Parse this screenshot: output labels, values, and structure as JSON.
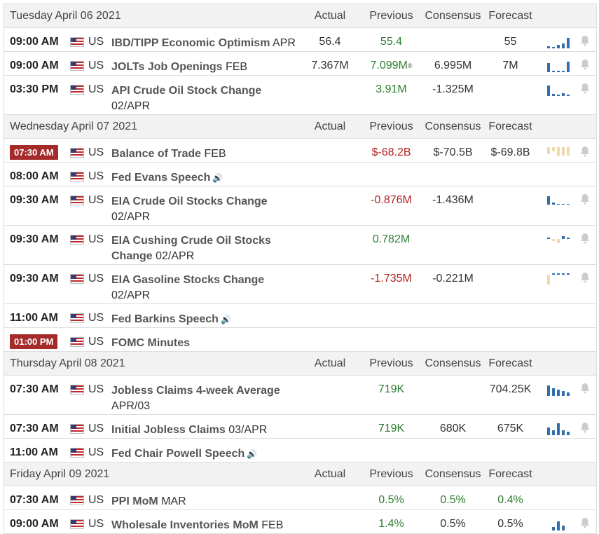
{
  "columns": {
    "actual": "Actual",
    "previous": "Previous",
    "consensus": "Consensus",
    "forecast": "Forecast"
  },
  "days": [
    {
      "title": "Tuesday April 06 2021"
    },
    {
      "title": "Wednesday April 07 2021"
    },
    {
      "title": "Thursday April 08 2021"
    },
    {
      "title": "Friday April 09 2021"
    }
  ],
  "events": [
    {
      "time": "09:00 AM",
      "country": "US",
      "name": "IBD/TIPP Economic Optimism",
      "period": "APR",
      "actual": "56.4",
      "previous": "55.4",
      "consensus": "",
      "forecast": "55"
    },
    {
      "time": "09:00 AM",
      "country": "US",
      "name": "JOLTs Job Openings",
      "period": "FEB",
      "actual": "7.367M",
      "previous": "7.099M",
      "revised_mark": "®",
      "consensus": "6.995M",
      "forecast": "7M"
    },
    {
      "time": "03:30 PM",
      "country": "US",
      "name": "API Crude Oil Stock Change",
      "period": "02/APR",
      "actual": "",
      "previous": "3.91M",
      "consensus": "-1.325M",
      "forecast": ""
    },
    {
      "time": "07:30 AM",
      "country": "US",
      "name": "Balance of Trade",
      "period": "FEB",
      "actual": "",
      "previous": "$-68.2B",
      "consensus": "$-70.5B",
      "forecast": "$-69.8B"
    },
    {
      "time": "08:00 AM",
      "country": "US",
      "name": "Fed Evans Speech",
      "period": "",
      "actual": "",
      "previous": "",
      "consensus": "",
      "forecast": ""
    },
    {
      "time": "09:30 AM",
      "country": "US",
      "name": "EIA Crude Oil Stocks Change",
      "period": "02/APR",
      "actual": "",
      "previous": "-0.876M",
      "consensus": "-1.436M",
      "forecast": ""
    },
    {
      "time": "09:30 AM",
      "country": "US",
      "name": "EIA Cushing Crude Oil Stocks Change",
      "period": "02/APR",
      "actual": "",
      "previous": "0.782M",
      "consensus": "",
      "forecast": ""
    },
    {
      "time": "09:30 AM",
      "country": "US",
      "name": "EIA Gasoline Stocks Change",
      "period": "02/APR",
      "actual": "",
      "previous": "-1.735M",
      "consensus": "-0.221M",
      "forecast": ""
    },
    {
      "time": "11:00 AM",
      "country": "US",
      "name": "Fed Barkins Speech",
      "period": "",
      "actual": "",
      "previous": "",
      "consensus": "",
      "forecast": ""
    },
    {
      "time": "01:00 PM",
      "country": "US",
      "name": "FOMC Minutes",
      "period": "",
      "actual": "",
      "previous": "",
      "consensus": "",
      "forecast": ""
    },
    {
      "time": "07:30 AM",
      "country": "US",
      "name": "Jobless Claims 4-week Average",
      "period": "APR/03",
      "actual": "",
      "previous": "719K",
      "consensus": "",
      "forecast": "704.25K"
    },
    {
      "time": "07:30 AM",
      "country": "US",
      "name": "Initial Jobless Claims",
      "period": "03/APR",
      "actual": "",
      "previous": "719K",
      "consensus": "680K",
      "forecast": "675K"
    },
    {
      "time": "11:00 AM",
      "country": "US",
      "name": "Fed Chair Powell Speech",
      "period": "",
      "actual": "",
      "previous": "",
      "consensus": "",
      "forecast": ""
    },
    {
      "time": "07:30 AM",
      "country": "US",
      "name": "PPI MoM",
      "period": "MAR",
      "actual": "",
      "previous": "0.5%",
      "consensus": "0.5%",
      "forecast": "0.4%"
    },
    {
      "time": "09:00 AM",
      "country": "US",
      "name": "Wholesale Inventories MoM",
      "period": "FEB",
      "actual": "",
      "previous": "1.4%",
      "consensus": "0.5%",
      "forecast": "0.5%"
    }
  ],
  "icons": {
    "flag": "us-flag-icon",
    "speech": "speaker-icon",
    "alert": "bell-icon",
    "sparkline": "sparkline-icon"
  },
  "colors": {
    "positive": "#2e7d32",
    "negative": "#b22222",
    "badge": "#a52a2a",
    "spark_blue": "#2f6fb0",
    "spark_tan": "#f0d9a8"
  }
}
